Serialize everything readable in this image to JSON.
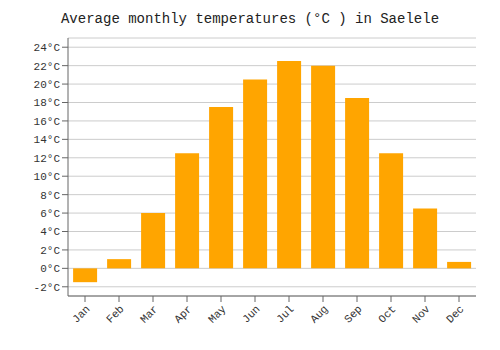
{
  "chart_data": {
    "type": "bar",
    "title": "Average monthly temperatures (°C ) in Saelele",
    "categories": [
      "Jan",
      "Feb",
      "Mar",
      "Apr",
      "May",
      "Jun",
      "Jul",
      "Aug",
      "Sep",
      "Oct",
      "Nov",
      "Dec"
    ],
    "values": [
      -1.5,
      1.0,
      6.0,
      12.5,
      17.5,
      20.5,
      22.5,
      22.0,
      18.5,
      12.5,
      6.5,
      0.7
    ],
    "color": "#FFA500",
    "ylim": [
      -3,
      25
    ],
    "yticks": [
      {
        "value": -2,
        "label": "-2°C"
      },
      {
        "value": 0,
        "label": "0°C"
      },
      {
        "value": 2,
        "label": "2°C"
      },
      {
        "value": 4,
        "label": "4°C"
      },
      {
        "value": 6,
        "label": "6°C"
      },
      {
        "value": 8,
        "label": "8°C"
      },
      {
        "value": 10,
        "label": "10°C"
      },
      {
        "value": 12,
        "label": "12°C"
      },
      {
        "value": 14,
        "label": "14°C"
      },
      {
        "value": 16,
        "label": "16°C"
      },
      {
        "value": 18,
        "label": "18°C"
      },
      {
        "value": 20,
        "label": "20°C"
      },
      {
        "value": 22,
        "label": "22°C"
      },
      {
        "value": 24,
        "label": "24°C"
      }
    ],
    "grid": true
  }
}
